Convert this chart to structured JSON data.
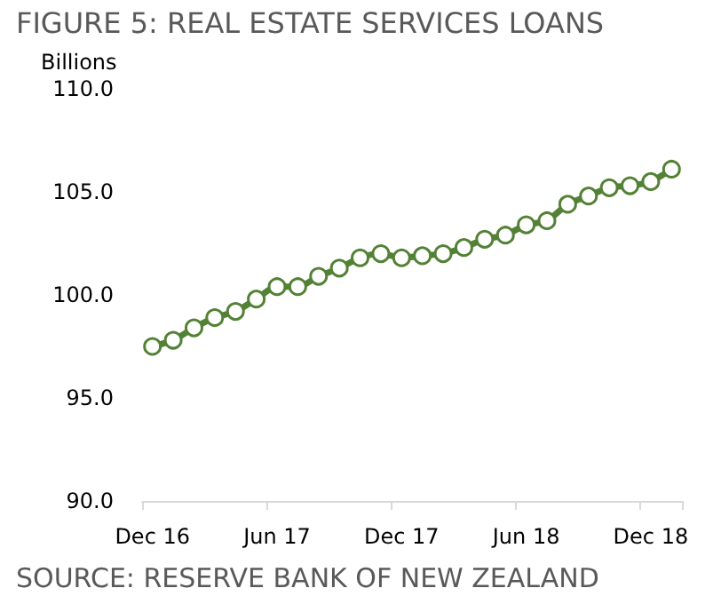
{
  "chart_data": {
    "type": "line",
    "title": "FIGURE 5: REAL ESTATE SERVICES LOANS",
    "ylabel": "Billions",
    "annotations": [
      "SOURCE: RESERVE BANK OF NEW ZEALAND"
    ],
    "categories": [
      "Dec 16",
      null,
      null,
      null,
      null,
      null,
      "Jun 17",
      null,
      null,
      null,
      null,
      null,
      "Dec 17",
      null,
      null,
      null,
      null,
      null,
      "Jun 18",
      null,
      null,
      null,
      null,
      null,
      "Dec 18",
      null
    ],
    "series": [
      {
        "color": "#538135",
        "values": [
          97.5,
          97.8,
          98.4,
          98.9,
          99.2,
          99.8,
          100.4,
          100.4,
          100.9,
          101.3,
          101.8,
          102.0,
          101.8,
          101.9,
          102.0,
          102.3,
          102.7,
          102.9,
          103.4,
          103.6,
          104.4,
          104.8,
          105.2,
          105.3,
          105.5,
          106.1
        ]
      }
    ],
    "ylim": [
      90,
      110
    ],
    "yticks": [
      {
        "value": 90,
        "label": "90.0"
      },
      {
        "value": 95,
        "label": "95.0"
      },
      {
        "value": 100,
        "label": "100.0"
      },
      {
        "value": 105,
        "label": "105.0"
      },
      {
        "value": 110,
        "label": "110.0"
      }
    ],
    "grid": false,
    "marker": "circle",
    "line_style": "solid"
  }
}
